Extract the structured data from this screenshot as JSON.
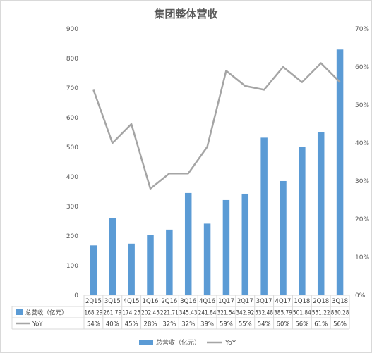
{
  "chart_data": {
    "type": "bar",
    "title": "集团整体营收",
    "categories": [
      "2Q15",
      "3Q15",
      "4Q15",
      "1Q16",
      "2Q16",
      "3Q16",
      "4Q16",
      "1Q17",
      "2Q17",
      "3Q17",
      "4Q17",
      "1Q18",
      "2Q18",
      "3Q18"
    ],
    "series": [
      {
        "name": "总营收（亿元）",
        "type": "bar",
        "axis": "left",
        "color": "#5b9bd5",
        "values": [
          168.29,
          261.79,
          174.25,
          202.45,
          221.71,
          345.43,
          241.84,
          321.54,
          342.92,
          532.48,
          385.79,
          501.84,
          551.22,
          830.28
        ],
        "labels": [
          "168.29",
          "261.79",
          "174.25",
          "202.45",
          "221.71",
          "345.43",
          "241.84",
          "321.54",
          "342.92",
          "532.48",
          "385.79",
          "501.84",
          "551.22",
          "830.28"
        ]
      },
      {
        "name": "YoY",
        "type": "line",
        "axis": "right",
        "color": "#a5a5a5",
        "values": [
          0.54,
          0.4,
          0.45,
          0.28,
          0.32,
          0.32,
          0.39,
          0.59,
          0.55,
          0.54,
          0.6,
          0.56,
          0.61,
          0.56
        ],
        "labels": [
          "54%",
          "40%",
          "45%",
          "28%",
          "32%",
          "32%",
          "39%",
          "59%",
          "55%",
          "54%",
          "60%",
          "56%",
          "61%",
          "56%"
        ]
      }
    ],
    "y_left": {
      "min": 0,
      "max": 900,
      "ticks": [
        "0",
        "100",
        "200",
        "300",
        "400",
        "500",
        "600",
        "700",
        "800",
        "900"
      ]
    },
    "y_right": {
      "min": 0,
      "max": 0.7,
      "ticks": [
        "0%",
        "10%",
        "20%",
        "30%",
        "40%",
        "50%",
        "60%",
        "70%"
      ]
    },
    "legend_position": "bottom",
    "data_table": true,
    "grid": false
  }
}
